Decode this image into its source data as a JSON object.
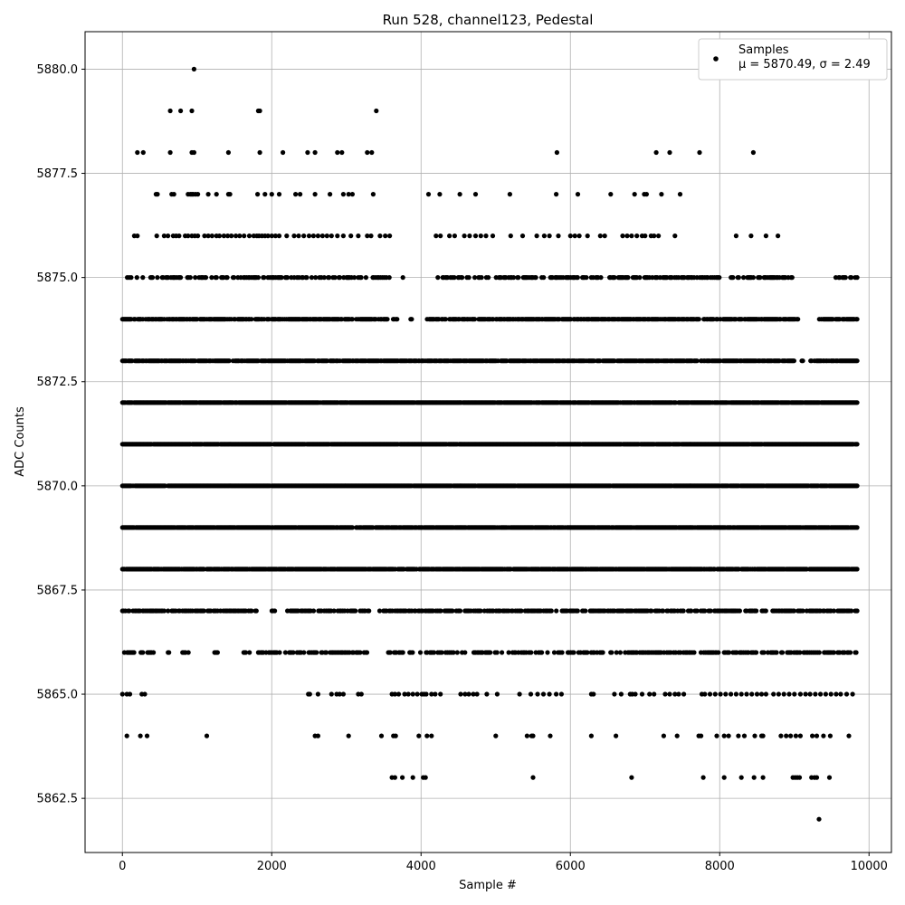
{
  "chart_data": {
    "type": "scatter",
    "title": "Run 528, channel123, Pedestal",
    "xlabel": "Sample #",
    "ylabel": "ADC Counts",
    "xlim": [
      -500,
      10300
    ],
    "ylim": [
      5861.2,
      5880.9
    ],
    "xticks": [
      0,
      2000,
      4000,
      6000,
      8000,
      10000
    ],
    "xtick_labels": [
      "0",
      "2000",
      "4000",
      "6000",
      "8000",
      "10000"
    ],
    "yticks": [
      5862.5,
      5865.0,
      5867.5,
      5870.0,
      5872.5,
      5875.0,
      5877.5,
      5880.0
    ],
    "ytick_labels": [
      "5862.5",
      "5865.0",
      "5867.5",
      "5870.0",
      "5872.5",
      "5875.0",
      "5877.5",
      "5880.0"
    ],
    "grid": true,
    "legend": {
      "position": "top-right",
      "entry_name": "Samples",
      "entry_stats": "μ = 5870.49, σ = 2.49"
    },
    "series": [
      {
        "name": "Samples",
        "color": "#000000",
        "marker": "circle",
        "x_range": [
          0,
          9850
        ],
        "levels": [
          {
            "y": 5880,
            "x": [
              960
            ]
          },
          {
            "y": 5879,
            "x": [
              640,
              780,
              930,
              1820,
              1840,
              3400
            ]
          },
          {
            "y": 5878,
            "x": [
              200,
              280,
              640,
              930,
              960,
              1420,
              1840,
              2150,
              2480,
              2580,
              2880,
              2940,
              3280,
              3340,
              5820,
              7150,
              7330,
              7730,
              8450
            ]
          },
          {
            "y": 5877,
            "x": [
              450,
              470,
              660,
              690,
              880,
              910,
              930,
              950,
              980,
              1010,
              1150,
              1260,
              1420,
              1440,
              1810,
              1910,
              2000,
              2100,
              2320,
              2380,
              2580,
              2780,
              2960,
              3030,
              3080,
              3360,
              4100,
              4250,
              4520,
              4730,
              5190,
              5810,
              6100,
              6540,
              6860,
              6990,
              7020,
              7220,
              7470
            ]
          },
          {
            "y": 5876,
            "x": [
              160,
              200,
              460,
              560,
              610,
              680,
              720,
              760,
              840,
              880,
              930,
              970,
              1010,
              1100,
              1150,
              1200,
              1260,
              1300,
              1360,
              1410,
              1460,
              1520,
              1570,
              1630,
              1700,
              1760,
              1800,
              1830,
              1870,
              1910,
              1950,
              2000,
              2050,
              2100,
              2200,
              2300,
              2360,
              2430,
              2500,
              2560,
              2620,
              2680,
              2740,
              2800,
              2880,
              2960,
              3060,
              3160,
              3280,
              3330,
              3450,
              3520,
              3580,
              4200,
              4260,
              4380,
              4450,
              4580,
              4650,
              4730,
              4800,
              4870,
              4960,
              5200,
              5360,
              5550,
              5650,
              5720,
              5840,
              6000,
              6060,
              6120,
              6230,
              6400,
              6460,
              6700,
              6760,
              6820,
              6890,
              6960,
              7000,
              7080,
              7120,
              7180,
              7400,
              8220,
              8420,
              8620,
              8780
            ]
          }
        ],
        "dense_levels": [
          {
            "y": 5875,
            "density": 0.45,
            "gaps": [
              [
                3580,
                3740
              ],
              [
                3790,
                4200
              ],
              [
                9000,
                9550
              ]
            ]
          },
          {
            "y": 5874,
            "density": 0.75,
            "gaps": [
              [
                3560,
                3620
              ],
              [
                3680,
                3850
              ],
              [
                3900,
                4080
              ],
              [
                9050,
                9320
              ]
            ]
          },
          {
            "y": 5873,
            "density": 0.85,
            "gaps": [
              [
                9000,
                9080
              ],
              [
                9120,
                9180
              ]
            ]
          },
          {
            "y": 5872,
            "density": 0.95,
            "gaps": []
          },
          {
            "y": 5871,
            "density": 0.97,
            "gaps": []
          },
          {
            "y": 5870,
            "density": 0.97,
            "gaps": []
          },
          {
            "y": 5869,
            "density": 0.93,
            "gaps": []
          },
          {
            "y": 5868,
            "density": 0.9,
            "gaps": []
          },
          {
            "y": 5867,
            "density": 0.6,
            "gaps": [
              [
                1800,
                1980
              ],
              [
                2060,
                2200
              ],
              [
                3320,
                3420
              ]
            ]
          },
          {
            "y": 5866,
            "density": 0.45,
            "gaps": [
              [
                420,
                560
              ],
              [
                640,
                800
              ],
              [
                900,
                1200
              ],
              [
                1300,
                1500
              ],
              [
                3300,
                3550
              ]
            ]
          }
        ],
        "sparse_levels": [
          {
            "y": 5865,
            "x": [
              0,
              60,
              100,
              260,
              300,
              2490,
              2510,
              2620,
              2800,
              2870,
              2910,
              2960,
              3160,
              3200,
              3610,
              3650,
              3700,
              3780,
              3830,
              3890,
              3950,
              4010,
              4040,
              4070,
              4140,
              4190,
              4260,
              4530,
              4590,
              4640,
              4700,
              4750,
              4880,
              5020,
              5320,
              5470,
              5560,
              5640,
              5720,
              5810,
              5880,
              6280,
              6310,
              6590,
              6680,
              6800,
              6830,
              6870,
              6960,
              7060,
              7120,
              7270,
              7330,
              7400,
              7450,
              7520,
              7760,
              7800,
              7870,
              7940,
              8010,
              8080,
              8150,
              8220,
              8290,
              8360,
              8430,
              8500,
              8560,
              8620,
              8720,
              8790,
              8860,
              8930,
              9000,
              9080,
              9150,
              9210,
              9280,
              9350,
              9420,
              9490,
              9560,
              9620,
              9700,
              9780
            ]
          },
          {
            "y": 5864,
            "x": [
              60,
              240,
              330,
              1130,
              2580,
              2620,
              3030,
              3470,
              3630,
              3660,
              3970,
              4080,
              4140,
              5000,
              5420,
              5480,
              5500,
              5730,
              6280,
              6610,
              7250,
              7430,
              7720,
              7750,
              7960,
              8060,
              8120,
              8250,
              8330,
              8470,
              8560,
              8580,
              8820,
              8890,
              8950,
              9020,
              9080,
              9240,
              9300,
              9390,
              9480,
              9730
            ]
          },
          {
            "y": 5863,
            "x": [
              3610,
              3650,
              3750,
              3890,
              4030,
              4060,
              5500,
              6820,
              7780,
              8060,
              8290,
              8460,
              8580,
              8980,
              9010,
              9040,
              9070,
              9230,
              9270,
              9300,
              9470
            ]
          },
          {
            "y": 5862,
            "x": [
              9330
            ]
          }
        ]
      }
    ]
  }
}
